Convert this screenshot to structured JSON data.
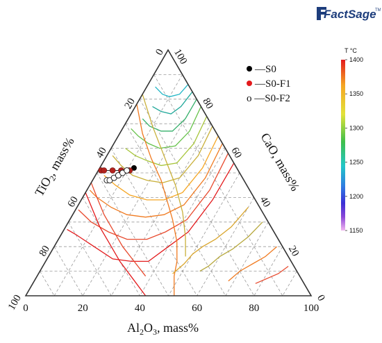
{
  "logo": {
    "text": "FactSage",
    "mark": "TM"
  },
  "chart_data": {
    "type": "ternary",
    "axes": {
      "bottom": {
        "label_main": "Al",
        "label_sub1": "2",
        "label_mid": "O",
        "label_sub2": "3",
        "label_rest": ", mass%",
        "ticks": [
          "0",
          "20",
          "40",
          "60",
          "80",
          "100"
        ]
      },
      "left": {
        "label_main": "TiO",
        "label_sub1": "2",
        "label_rest": ", mass%",
        "ticks": [
          "0",
          "20",
          "40",
          "60",
          "80",
          "100"
        ]
      },
      "right": {
        "label_main": "CaO, mass%",
        "ticks": [
          "100",
          "80",
          "60",
          "40",
          "20",
          "0"
        ]
      }
    },
    "grid": true,
    "grid_step": 10,
    "colorbar": {
      "title": "T °C",
      "min": 1150,
      "max": 1400,
      "ticks": [
        "1400",
        "1350",
        "1300",
        "1250",
        "1200",
        "1150"
      ]
    },
    "series": [
      {
        "name": "—S0",
        "marker": "black-filled",
        "points": [
          {
            "al2o3": 12,
            "tio2": 36,
            "cao": 52
          }
        ]
      },
      {
        "name": "—S0-F1",
        "marker": "red-filled",
        "points": [
          {
            "al2o3": 1,
            "tio2": 48,
            "cao": 51
          },
          {
            "al2o3": 2,
            "tio2": 47,
            "cao": 51
          },
          {
            "al2o3": 5,
            "tio2": 44,
            "cao": 51
          },
          {
            "al2o3": 8,
            "tio2": 41,
            "cao": 51
          },
          {
            "al2o3": 11,
            "tio2": 38,
            "cao": 51
          }
        ]
      },
      {
        "name": "o —S0-F2",
        "marker": "open-circle",
        "points": [
          {
            "al2o3": 5,
            "tio2": 48,
            "cao": 47
          },
          {
            "al2o3": 6,
            "tio2": 47,
            "cao": 47
          },
          {
            "al2o3": 7,
            "tio2": 45,
            "cao": 48
          },
          {
            "al2o3": 8,
            "tio2": 43,
            "cao": 49
          },
          {
            "al2o3": 9,
            "tio2": 41,
            "cao": 50
          },
          {
            "al2o3": 10,
            "tio2": 39,
            "cao": 51
          }
        ]
      }
    ],
    "isotherms": [
      {
        "t": 1400,
        "color": "#e31a1c",
        "pts": [
          [
            46,
            0
          ],
          [
            46,
            15
          ],
          [
            44,
            30
          ],
          [
            40,
            40
          ],
          [
            36,
            50
          ],
          [
            30,
            56
          ],
          [
            23,
            62
          ],
          [
            14,
            66
          ],
          [
            5,
            70
          ],
          [
            1,
            72
          ]
        ]
      },
      {
        "t": 1390,
        "color": "#e84a2e",
        "pts": [
          [
            42,
            0
          ],
          [
            43,
            14
          ],
          [
            41,
            28
          ],
          [
            36,
            38
          ],
          [
            31,
            46
          ],
          [
            24,
            53
          ],
          [
            16,
            58
          ],
          [
            8,
            62
          ],
          [
            1,
            64
          ]
        ]
      },
      {
        "t": 1375,
        "color": "#f07a20",
        "pts": [
          [
            38,
            0
          ],
          [
            39,
            13
          ],
          [
            37,
            26
          ],
          [
            32,
            35
          ],
          [
            26,
            42
          ],
          [
            19,
            48
          ],
          [
            12,
            52
          ],
          [
            5,
            55
          ],
          [
            1,
            56
          ]
        ]
      },
      {
        "t": 1360,
        "color": "#f5a623",
        "pts": [
          [
            35,
            0
          ],
          [
            36,
            12
          ],
          [
            34,
            24
          ],
          [
            29,
            32
          ],
          [
            23,
            38
          ],
          [
            16,
            43
          ],
          [
            9,
            46
          ],
          [
            3,
            48
          ]
        ]
      },
      {
        "t": 1345,
        "color": "#c9b03a",
        "pts": [
          [
            31,
            0
          ],
          [
            32,
            11
          ],
          [
            30,
            22
          ],
          [
            25,
            29
          ],
          [
            19,
            34
          ],
          [
            13,
            38
          ],
          [
            7,
            40
          ],
          [
            2,
            41
          ]
        ]
      },
      {
        "t": 1330,
        "color": "#a7c53a",
        "pts": [
          [
            27,
            0
          ],
          [
            28,
            10
          ],
          [
            26,
            20
          ],
          [
            21,
            26
          ],
          [
            15,
            30
          ],
          [
            10,
            33
          ],
          [
            5,
            35
          ]
        ]
      },
      {
        "t": 1315,
        "color": "#66c24a",
        "pts": [
          [
            23,
            0
          ],
          [
            24,
            9
          ],
          [
            22,
            17
          ],
          [
            17,
            23
          ],
          [
            12,
            26
          ],
          [
            7,
            28
          ],
          [
            3,
            29
          ]
        ]
      },
      {
        "t": 1300,
        "color": "#35b06a",
        "pts": [
          [
            20,
            0
          ],
          [
            20,
            8
          ],
          [
            18,
            15
          ],
          [
            14,
            19
          ],
          [
            9,
            22
          ],
          [
            5,
            23
          ]
        ]
      },
      {
        "t": 1285,
        "color": "#21a89a",
        "pts": [
          [
            17,
            0
          ],
          [
            16,
            7
          ],
          [
            14,
            12
          ],
          [
            10,
            15
          ],
          [
            6,
            17
          ]
        ]
      },
      {
        "t": 1270,
        "color": "#22b6c6",
        "pts": [
          [
            14,
            0
          ],
          [
            13,
            5
          ],
          [
            10,
            9
          ],
          [
            7,
            11
          ],
          [
            3,
            12
          ]
        ]
      },
      {
        "t": 1405,
        "color": "#e31a1c",
        "pts": [
          [
            0,
            58
          ],
          [
            6,
            59
          ],
          [
            12,
            60
          ],
          [
            18,
            60
          ],
          [
            26,
            60
          ],
          [
            34,
            59
          ],
          [
            42,
            58
          ]
        ]
      },
      {
        "t": 1390,
        "color": "#e84a2e",
        "pts": [
          [
            0,
            54
          ],
          [
            5,
            55
          ],
          [
            11,
            56
          ],
          [
            17,
            56
          ],
          [
            24,
            56
          ],
          [
            31,
            55
          ],
          [
            38,
            54
          ]
        ]
      },
      {
        "t": 1380,
        "color": "#f07a20",
        "pts": [
          [
            0,
            22
          ],
          [
            8,
            26
          ],
          [
            16,
            28
          ],
          [
            24,
            29
          ],
          [
            30,
            31
          ],
          [
            36,
            33
          ],
          [
            42,
            36
          ],
          [
            46,
            40
          ],
          [
            48,
            44
          ],
          [
            52,
            48
          ]
        ]
      },
      {
        "t": 1370,
        "color": "#c9b03a",
        "pts": [
          [
            0,
            18
          ],
          [
            10,
            21
          ],
          [
            20,
            23
          ],
          [
            30,
            25
          ],
          [
            38,
            28
          ],
          [
            44,
            32
          ],
          [
            48,
            36
          ]
        ]
      },
      {
        "t": 1360,
        "color": "#d9a52c",
        "pts": [
          [
            60,
            4
          ],
          [
            58,
            14
          ],
          [
            55,
            22
          ],
          [
            52,
            28
          ],
          [
            50,
            33
          ],
          [
            49,
            38
          ],
          [
            47,
            44
          ]
        ]
      },
      {
        "t": 1350,
        "color": "#b7a83d",
        "pts": [
          [
            68,
            2
          ],
          [
            66,
            10
          ],
          [
            63,
            18
          ],
          [
            60,
            24
          ],
          [
            58,
            30
          ],
          [
            56,
            34
          ]
        ]
      },
      {
        "t": 1340,
        "color": "#f07a20",
        "pts": [
          [
            78,
            2
          ],
          [
            76,
            8
          ],
          [
            73,
            14
          ],
          [
            70,
            20
          ],
          [
            68,
            26
          ]
        ]
      },
      {
        "t": 1330,
        "color": "#e84a2e",
        "pts": [
          [
            86,
            2
          ],
          [
            84,
            7
          ],
          [
            81,
            12
          ],
          [
            78,
            17
          ]
        ]
      }
    ]
  }
}
